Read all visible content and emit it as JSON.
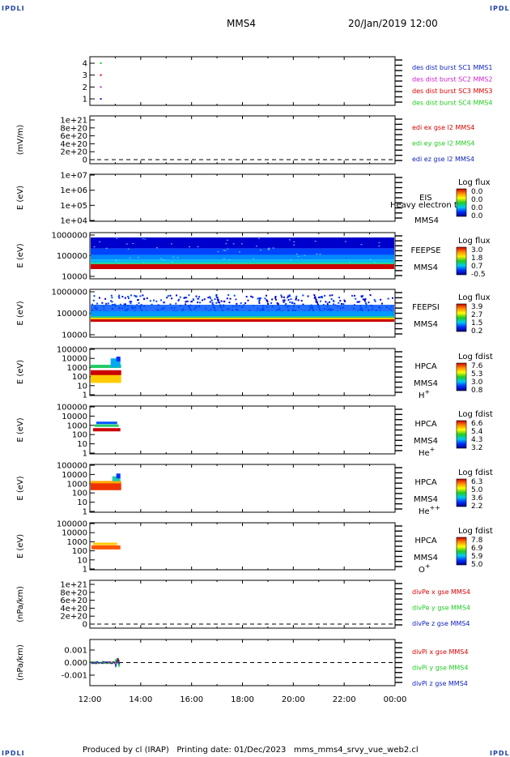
{
  "corners": {
    "tl": "IPDLI",
    "tr": "IPDLI",
    "bl": "IPDLI",
    "br": "IPDLI"
  },
  "header": {
    "title": "MMS4",
    "datetime": "20/Jan/2019 12:00"
  },
  "footer": "Produced by cl (IRAP)   Printing date: 01/Dec/2023   mms_mms4_srvy_vue_web2.cl",
  "x_axis": {
    "ticks": [
      "12:00",
      "14:00",
      "16:00",
      "18:00",
      "20:00",
      "22:00",
      "00:00"
    ]
  },
  "colors": {
    "red": "#dd0000",
    "green": "#22cc22",
    "blue": "#1122bb",
    "magenta": "#cc22cc",
    "accent_blue": "#2244aa"
  },
  "chart_data": [
    {
      "type": "scatter",
      "panel": "burst",
      "yticks": [
        "1",
        "2",
        "3",
        "4"
      ],
      "ylim": [
        0.5,
        4.5
      ],
      "legend": [
        {
          "text": "des dist burst SC1 MMS1",
          "color": "#1122bb"
        },
        {
          "text": "des dist burst SC2 MMS2",
          "color": "#cc22cc"
        },
        {
          "text": "des dist burst SC3 MMS3",
          "color": "#dd0000"
        },
        {
          "text": "des dist burst SC4 MMS4",
          "color": "#22cc22"
        }
      ],
      "points": [
        {
          "x": "12:24",
          "y": 4,
          "color": "#22cc22"
        },
        {
          "x": "12:24",
          "y": 3,
          "color": "#dd0000"
        },
        {
          "x": "12:24",
          "y": 2,
          "color": "#cc22cc"
        },
        {
          "x": "12:24",
          "y": 1,
          "color": "#1122bb"
        }
      ]
    },
    {
      "type": "line",
      "panel": "edi",
      "ylabel": "(mV/m)",
      "yticks": [
        "0",
        "2e+20",
        "4e+20",
        "6e+20",
        "8e+20",
        "1e+21"
      ],
      "ylim": [
        0,
        1.2e+21
      ],
      "legend": [
        {
          "text": "edi ex gse l2 MMS4",
          "color": "#dd0000"
        },
        {
          "text": "edi ey gse l2 MMS4",
          "color": "#22cc22"
        },
        {
          "text": "edi ez gse l2 MMS4",
          "color": "#1122bb"
        }
      ]
    },
    {
      "type": "heatmap",
      "panel": "eis",
      "ylabel": "E (eV)",
      "yticks": [
        "1e+04",
        "1e+05",
        "1e+06",
        "1e+07"
      ],
      "ylog": true,
      "instrument": "EIS",
      "spacecraft": "MMS4",
      "overlay": "Heavy electron to",
      "colorbar": {
        "title": "Log flux",
        "ticks": [
          "0.0",
          "0.0",
          "0.0",
          "0.0"
        ]
      }
    },
    {
      "type": "heatmap",
      "panel": "feepse",
      "ylabel": "E (eV)",
      "yticks": [
        "10000",
        "100000",
        "1000000"
      ],
      "ylog": true,
      "instrument": "FEEPSE",
      "spacecraft": "MMS4",
      "colorbar": {
        "title": "Log flux",
        "ticks": [
          "3.0",
          "1.8",
          "0.7",
          "-0.5"
        ]
      }
    },
    {
      "type": "heatmap",
      "panel": "feepsi",
      "ylabel": "E (eV)",
      "yticks": [
        "10000",
        "100000",
        "1000000"
      ],
      "ylog": true,
      "instrument": "FEEPSI",
      "spacecraft": "MMS4",
      "colorbar": {
        "title": "Log flux",
        "ticks": [
          "3.9",
          "2.7",
          "1.5",
          "0.2"
        ]
      }
    },
    {
      "type": "heatmap",
      "panel": "hpca_h",
      "ylabel": "E (eV)",
      "yticks": [
        "1",
        "10",
        "100",
        "1000",
        "10000",
        "100000"
      ],
      "ylog": true,
      "instrument": "HPCA",
      "spacecraft": "MMS4",
      "species": "H",
      "charge": "+",
      "data_end": "13:12",
      "colorbar": {
        "title": "Log fdist",
        "ticks": [
          "7.6",
          "5.3",
          "3.0",
          "0.8"
        ]
      }
    },
    {
      "type": "heatmap",
      "panel": "hpca_he",
      "ylabel": "E (eV)",
      "yticks": [
        "1",
        "10",
        "100",
        "1000",
        "10000",
        "100000"
      ],
      "ylog": true,
      "instrument": "HPCA",
      "spacecraft": "MMS4",
      "species": "He",
      "charge": "+",
      "data_end": "13:12",
      "colorbar": {
        "title": "Log fdist",
        "ticks": [
          "6.6",
          "5.4",
          "4.3",
          "3.2"
        ]
      }
    },
    {
      "type": "heatmap",
      "panel": "hpca_hepp",
      "ylabel": "E (eV)",
      "yticks": [
        "1",
        "10",
        "100",
        "1000",
        "10000",
        "100000"
      ],
      "ylog": true,
      "instrument": "HPCA",
      "spacecraft": "MMS4",
      "species": "He",
      "charge": "++",
      "data_end": "13:12",
      "colorbar": {
        "title": "Log fdist",
        "ticks": [
          "6.3",
          "5.0",
          "3.6",
          "2.2"
        ]
      }
    },
    {
      "type": "heatmap",
      "panel": "hpca_o",
      "ylabel": "E (eV)",
      "yticks": [
        "1",
        "10",
        "100",
        "1000",
        "10000",
        "100000"
      ],
      "ylog": true,
      "instrument": "HPCA",
      "spacecraft": "MMS4",
      "species": "O",
      "charge": "+",
      "data_end": "13:12",
      "colorbar": {
        "title": "Log fdist",
        "ticks": [
          "7.8",
          "6.9",
          "5.9",
          "5.0"
        ]
      }
    },
    {
      "type": "line",
      "panel": "divpe",
      "ylabel": "(nPa/km)",
      "yticks": [
        "0",
        "2e+20",
        "4e+20",
        "6e+20",
        "8e+20",
        "1e+21"
      ],
      "ylim": [
        0,
        1.2e+21
      ],
      "legend": [
        {
          "text": "divPe x gse MMS4",
          "color": "#dd0000"
        },
        {
          "text": "divPe y gse MMS4",
          "color": "#22cc22"
        },
        {
          "text": "divPe z gse MMS4",
          "color": "#1122bb"
        }
      ]
    },
    {
      "type": "line",
      "panel": "divpi",
      "ylabel": "(nPa/km)",
      "yticks": [
        "-0.001",
        "0.000",
        "0.001"
      ],
      "ylim": [
        -0.0015,
        0.0015
      ],
      "data_end": "13:12",
      "legend": [
        {
          "text": "divPi x gse MMS4",
          "color": "#dd0000"
        },
        {
          "text": "divPi y gse MMS4",
          "color": "#22cc22"
        },
        {
          "text": "divPi z gse MMS4",
          "color": "#1122bb"
        }
      ]
    }
  ]
}
